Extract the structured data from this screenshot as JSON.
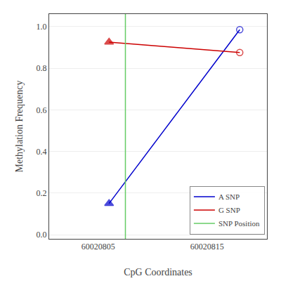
{
  "chart_data": {
    "type": "line",
    "xlabel": "CpG Coordinates",
    "ylabel": "Methylation Frequency",
    "series": [
      {
        "name": "A SNP",
        "color": "#0000cc",
        "x": [
          60020806,
          60020818
        ],
        "values": [
          0.15,
          0.985
        ],
        "marker": "ends"
      },
      {
        "name": "G SNP",
        "color": "#cc0000",
        "x": [
          60020806,
          60020818
        ],
        "values": [
          0.925,
          0.875
        ],
        "marker": "ends"
      },
      {
        "name": "SNP Position",
        "type": "vline",
        "color": "#66cc66",
        "x": [
          60020807.5
        ]
      }
    ],
    "xlim": [
      60020800.5,
      60020820.5
    ],
    "ylim": [
      -0.02,
      1.06
    ],
    "xticks": [
      60020805,
      60020815
    ],
    "yticks": [
      {
        "value": 0.0,
        "label": "0.0"
      },
      0.2,
      0.4,
      0.6,
      0.8,
      {
        "value": 1.0,
        "label": "1.0"
      }
    ],
    "grid": "y",
    "legend": "lower right"
  }
}
